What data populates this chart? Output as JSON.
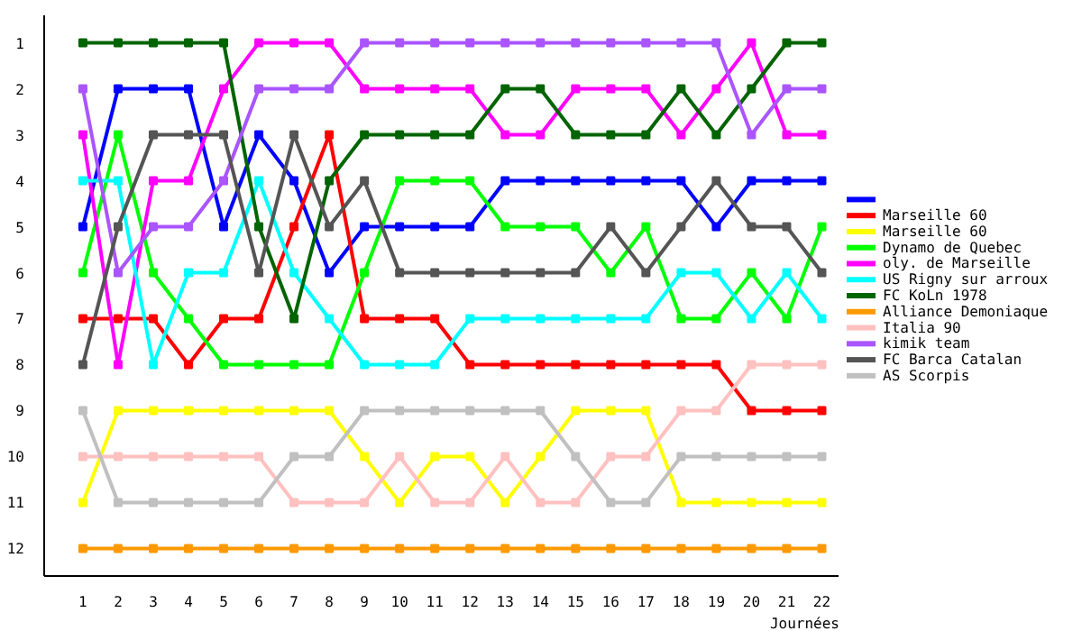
{
  "chart_data": {
    "type": "line",
    "xlabel": "Journées",
    "x": [
      1,
      2,
      3,
      4,
      5,
      6,
      7,
      8,
      9,
      10,
      11,
      12,
      13,
      14,
      15,
      16,
      17,
      18,
      19,
      20,
      21,
      22
    ],
    "xlim": [
      -0.1,
      22.5
    ],
    "ylim": [
      12.6,
      0.4
    ],
    "xticks": [
      1,
      2,
      3,
      4,
      5,
      6,
      7,
      8,
      9,
      10,
      11,
      12,
      13,
      14,
      15,
      16,
      17,
      18,
      19,
      20,
      21,
      22
    ],
    "yticks": [
      1,
      2,
      3,
      4,
      5,
      6,
      7,
      8,
      9,
      10,
      11,
      12
    ],
    "marker": "square",
    "line_style": "solid",
    "grid": false,
    "legend": "right",
    "series": [
      {
        "color": "#0000ff",
        "values": [
          5,
          2,
          2,
          2,
          5,
          3,
          4,
          6,
          5,
          5,
          5,
          5,
          4,
          4,
          4,
          4,
          4,
          4,
          5,
          4,
          4,
          4
        ]
      },
      {
        "name": "Marseille 60",
        "color": "#ff0000",
        "values": [
          7,
          7,
          7,
          8,
          7,
          7,
          5,
          3,
          7,
          7,
          7,
          8,
          8,
          8,
          8,
          8,
          8,
          8,
          8,
          9,
          9,
          9
        ]
      },
      {
        "name": "Marseille 60",
        "color": "#ffff00",
        "values": [
          11,
          9,
          9,
          9,
          9,
          9,
          9,
          9,
          10,
          11,
          10,
          10,
          11,
          10,
          9,
          9,
          9,
          11,
          11,
          11,
          11,
          11
        ]
      },
      {
        "name": "Dynamo de Quebec",
        "color": "#00ff00",
        "values": [
          6,
          3,
          6,
          7,
          8,
          8,
          8,
          8,
          6,
          4,
          4,
          4,
          5,
          5,
          5,
          6,
          5,
          7,
          7,
          6,
          7,
          5
        ]
      },
      {
        "name": "oly. de Marseille",
        "color": "#ff00ff",
        "values": [
          3,
          8,
          4,
          4,
          2,
          1,
          1,
          1,
          2,
          2,
          2,
          2,
          3,
          3,
          2,
          2,
          2,
          3,
          2,
          1,
          3,
          3
        ]
      },
      {
        "name": "US Rigny sur arroux",
        "color": "#00ffff",
        "values": [
          4,
          4,
          8,
          6,
          6,
          4,
          6,
          7,
          8,
          8,
          8,
          7,
          7,
          7,
          7,
          7,
          7,
          6,
          6,
          7,
          6,
          7
        ]
      },
      {
        "name": "FC KoLn 1978",
        "color": "#006400",
        "values": [
          1,
          1,
          1,
          1,
          1,
          5,
          7,
          4,
          3,
          3,
          3,
          3,
          2,
          2,
          3,
          3,
          3,
          2,
          3,
          2,
          1,
          1
        ]
      },
      {
        "name": "Alliance Demoniaque",
        "color": "#ff9900",
        "values": [
          12,
          12,
          12,
          12,
          12,
          12,
          12,
          12,
          12,
          12,
          12,
          12,
          12,
          12,
          12,
          12,
          12,
          12,
          12,
          12,
          12,
          12
        ]
      },
      {
        "name": "Italia 90",
        "color": "#ffc0c0",
        "values": [
          10,
          10,
          10,
          10,
          10,
          10,
          11,
          11,
          11,
          10,
          11,
          11,
          10,
          11,
          11,
          10,
          10,
          9,
          9,
          8,
          8,
          8
        ]
      },
      {
        "name": "kimik team",
        "color": "#aa55ff",
        "values": [
          2,
          6,
          5,
          5,
          4,
          2,
          2,
          2,
          1,
          1,
          1,
          1,
          1,
          1,
          1,
          1,
          1,
          1,
          1,
          3,
          2,
          2
        ]
      },
      {
        "name": "FC Barca Catalan",
        "color": "#555555",
        "values": [
          8,
          5,
          3,
          3,
          3,
          6,
          3,
          5,
          4,
          6,
          6,
          6,
          6,
          6,
          6,
          5,
          6,
          5,
          4,
          5,
          5,
          6
        ]
      },
      {
        "name": "AS Scorpis",
        "color": "#c0c0c0",
        "values": [
          9,
          11,
          11,
          11,
          11,
          11,
          10,
          10,
          9,
          9,
          9,
          9,
          9,
          9,
          10,
          11,
          11,
          10,
          10,
          10,
          10,
          10
        ]
      }
    ]
  }
}
